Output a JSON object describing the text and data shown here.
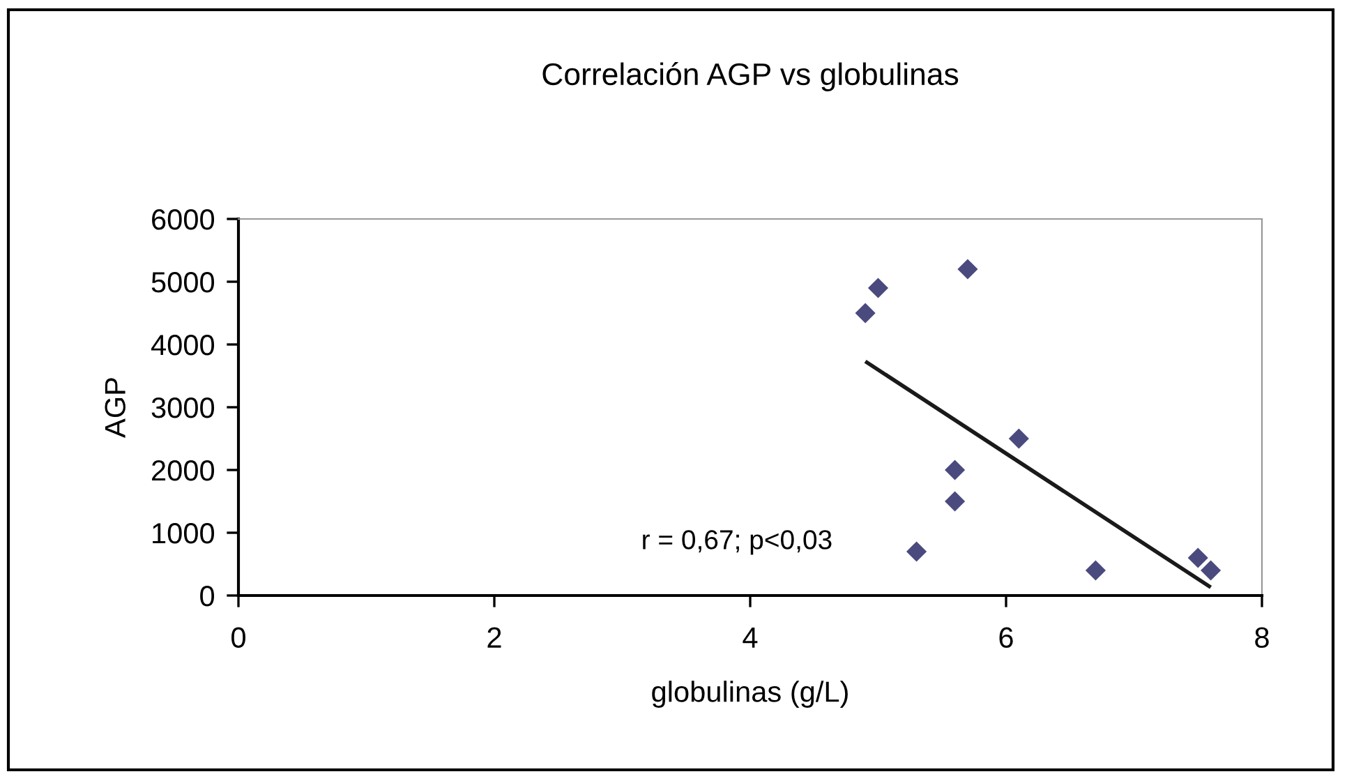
{
  "chart_data": {
    "type": "scatter",
    "title": "Correlación AGP vs globulinas",
    "xlabel": "globulinas (g/L)",
    "ylabel": "AGP",
    "xlim": [
      0,
      8
    ],
    "xticks": [
      0,
      2,
      4,
      6,
      8
    ],
    "ylim": [
      0,
      6000
    ],
    "yticks": [
      0,
      1000,
      2000,
      3000,
      4000,
      5000,
      6000
    ],
    "grid": false,
    "legend": false,
    "series": [
      {
        "marker": "diamond",
        "color": "#4b4a7e",
        "x": [
          4.9,
          5.0,
          5.7,
          6.1,
          5.6,
          5.6,
          5.3,
          6.7,
          7.5,
          7.6
        ],
        "values": [
          4500,
          4900,
          5200,
          2500,
          2000,
          1500,
          700,
          400,
          600,
          400
        ]
      },
      {
        "type": "line",
        "color": "#1a1a1a",
        "x": [
          4.9,
          7.6
        ],
        "values": [
          3730,
          130
        ]
      }
    ],
    "annotations": [
      "r = 0,67; p<0,03"
    ]
  }
}
